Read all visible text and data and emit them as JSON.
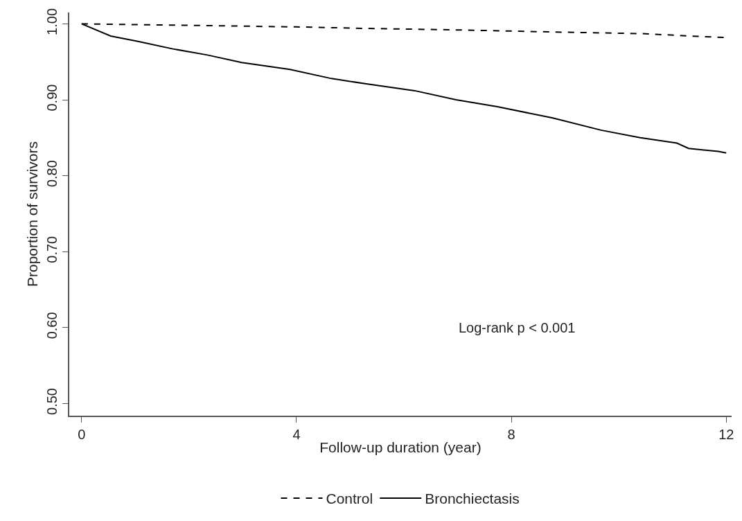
{
  "chart_data": {
    "type": "line",
    "xlabel": "Follow-up duration (year)",
    "ylabel": "Proportion of survivors",
    "x": [
      0,
      0.54,
      1.05,
      1.7,
      2.34,
      2.98,
      3.88,
      4.65,
      5.3,
      6.2,
      6.97,
      7.74,
      8.77,
      9.67,
      10.4,
      11.08,
      11.3,
      11.85,
      12
    ],
    "series": [
      {
        "name": "Control",
        "color": "#000000",
        "line_style": "dashed",
        "x": [
          0,
          2,
          4,
          5.3,
          7,
          9,
          10.5,
          11.3,
          12
        ],
        "values": [
          1.0,
          0.998,
          0.996,
          0.994,
          0.992,
          0.989,
          0.987,
          0.984,
          0.982
        ]
      },
      {
        "name": "Bronchiectasis",
        "color": "#000000",
        "line_style": "solid",
        "values": [
          1.0,
          0.984,
          0.977,
          0.967,
          0.959,
          0.949,
          0.94,
          0.928,
          0.921,
          0.912,
          0.9,
          0.891,
          0.876,
          0.86,
          0.85,
          0.843,
          0.836,
          0.832,
          0.83
        ]
      }
    ],
    "xlim": [
      -0.23,
      12.1
    ],
    "ylim": [
      0.484,
      1.015
    ],
    "xticks": [
      0,
      4,
      8,
      12
    ],
    "yticks": [
      {
        "value": 0.5,
        "label": "0.50"
      },
      {
        "value": 0.6,
        "label": "0.60"
      },
      {
        "value": 0.7,
        "label": "0.70"
      },
      {
        "value": 0.8,
        "label": "0.80"
      },
      {
        "value": 0.9,
        "label": "0.90"
      },
      {
        "value": 1.0,
        "label": "1.00"
      }
    ],
    "annotations": [
      "Log-rank p < 0.001"
    ],
    "legend": "bottom",
    "marker": "none"
  }
}
